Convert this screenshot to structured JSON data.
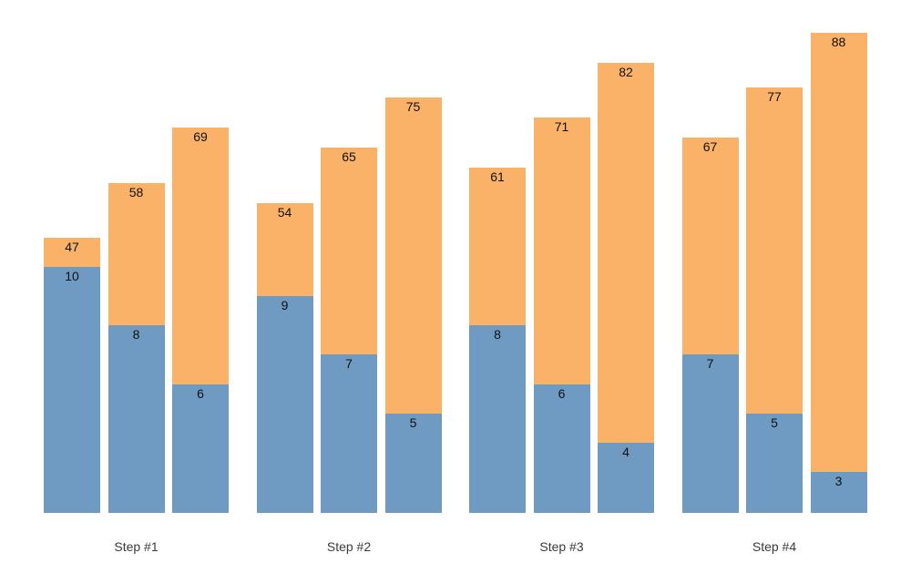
{
  "chart_data": {
    "type": "bar",
    "variant": "grouped-stacked",
    "title": "",
    "xlabel": "",
    "ylabel": "",
    "legend": "none",
    "grid": false,
    "axes_visible": false,
    "background": "#ffffff",
    "categories": [
      "Step #1",
      "Step #2",
      "Step #3",
      "Step #4"
    ],
    "bars_per_group": 3,
    "series": [
      {
        "name": "blue bottom segment",
        "color": "#6f9ac1",
        "label_color": "#111111",
        "values": [
          [
            10,
            8,
            6
          ],
          [
            9,
            7,
            5
          ],
          [
            8,
            6,
            4
          ],
          [
            7,
            5,
            3
          ]
        ]
      },
      {
        "name": "orange top segment with bar total label",
        "color": "#f9b268",
        "label_color": "#111111",
        "values": [
          [
            47,
            58,
            69
          ],
          [
            54,
            65,
            75
          ],
          [
            61,
            71,
            82
          ],
          [
            67,
            77,
            88
          ]
        ]
      }
    ],
    "x_tick_label_color": "#3a3a3a"
  }
}
